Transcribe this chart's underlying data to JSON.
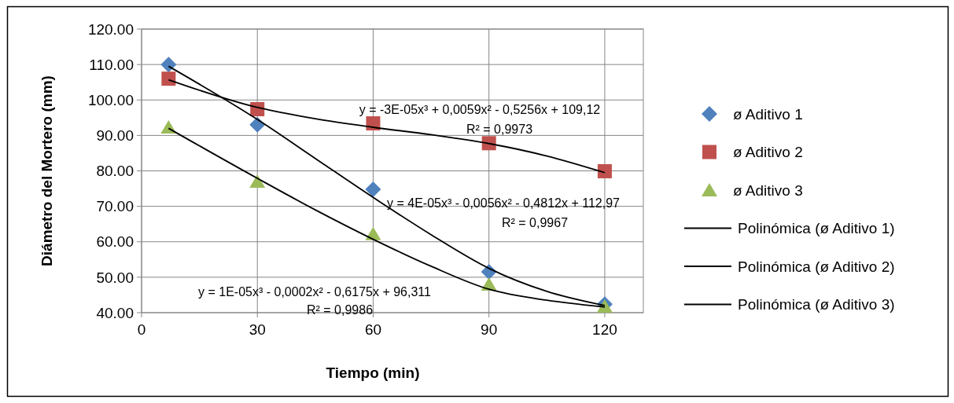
{
  "chart_data": {
    "type": "scatter",
    "xlabel": "Tiempo (min)",
    "ylabel": "Diámetro del Mortero (mm)",
    "xlim": [
      0,
      130
    ],
    "xticks": [
      0,
      30,
      60,
      90,
      120
    ],
    "ylim": [
      40,
      120
    ],
    "yticks": [
      {
        "value": 40,
        "label": "40.00"
      },
      {
        "value": 50,
        "label": "50.00"
      },
      {
        "value": 60,
        "label": "60.00"
      },
      {
        "value": 70,
        "label": "70.00"
      },
      {
        "value": 80,
        "label": "80.00"
      },
      {
        "value": 90,
        "label": "90.00"
      },
      {
        "value": 100,
        "label": "100.00"
      },
      {
        "value": 110,
        "label": "110.00"
      },
      {
        "value": 120,
        "label": "120.00"
      }
    ],
    "grid": true,
    "legend": "right",
    "x": [
      7,
      30,
      60,
      90,
      120
    ],
    "series": [
      {
        "name": "ø Aditivo 1",
        "color": "#4f81bd",
        "marker": "diamond",
        "values": [
          110,
          93,
          74.8,
          51.5,
          42.4
        ]
      },
      {
        "name": "ø Aditivo 2",
        "color": "#c0504d",
        "marker": "square",
        "values": [
          106,
          97.4,
          93.4,
          87.8,
          79.9
        ]
      },
      {
        "name": "ø Aditivo 3",
        "color": "#9bbb59",
        "marker": "triangle",
        "values": [
          92.3,
          77,
          62.2,
          48,
          41.8
        ]
      },
      {
        "name": "Polinómica (ø Aditivo 1)",
        "type": "line",
        "color": "#000000",
        "marker": "none",
        "x": [
          7,
          30,
          45,
          60,
          75,
          90,
          105,
          120
        ],
        "values": [
          109.5,
          94.5,
          83.5,
          72.5,
          62,
          52.5,
          46,
          42
        ]
      },
      {
        "name": "Polinómica (ø Aditivo 2)",
        "type": "line",
        "color": "#000000",
        "marker": "none",
        "x": [
          7,
          30,
          45,
          60,
          75,
          90,
          105,
          120
        ],
        "values": [
          105.7,
          97.9,
          94.7,
          92.3,
          90.2,
          87.7,
          84.2,
          79.5
        ]
      },
      {
        "name": "Polinómica (ø Aditivo 3)",
        "type": "line",
        "color": "#000000",
        "marker": "none",
        "x": [
          7,
          30,
          45,
          60,
          75,
          90,
          105,
          120
        ],
        "values": [
          92,
          77.9,
          69,
          60.7,
          53.1,
          46.6,
          43.5,
          41.6
        ]
      }
    ],
    "annotations": [
      "y = -3E-05x³ + 0,0059x² - 0,5256x + 109,12",
      "R² = 0,9973",
      "y = 4E-05x³ - 0,0056x² - 0,4812x + 112,97",
      "R² = 0,9967",
      "y = 1E-05x³ - 0,0002x² - 0,6175x + 96,311",
      "R² = 0,9986"
    ]
  }
}
